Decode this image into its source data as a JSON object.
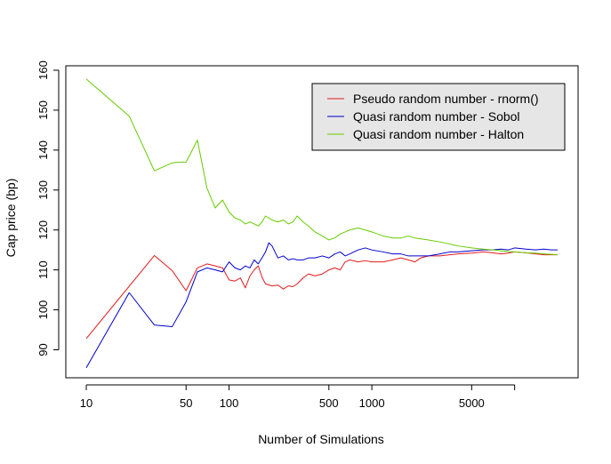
{
  "chart_data": {
    "type": "line",
    "title": "",
    "xlabel": "Number of Simulations",
    "ylabel": "Cap price (bp)",
    "x_scale": "log",
    "xlim": [
      10,
      20000
    ],
    "ylim": [
      85,
      160
    ],
    "x_ticks": [
      {
        "value": 10,
        "label": "10"
      },
      {
        "value": 50,
        "label": "50"
      },
      {
        "value": 100,
        "label": "100"
      },
      {
        "value": 500,
        "label": "500"
      },
      {
        "value": 1000,
        "label": "1000"
      },
      {
        "value": 5000,
        "label": "5000"
      },
      {
        "value": 10000,
        "label": ""
      }
    ],
    "y_ticks": [
      90,
      100,
      110,
      120,
      130,
      140,
      150,
      160
    ],
    "grid": false,
    "legend_position": "top-right",
    "series": [
      {
        "name": "Pseudo random number - rnorm()",
        "color": "#e31a1c",
        "points": [
          [
            10,
            92.8
          ],
          [
            30,
            113.6
          ],
          [
            40,
            109.8
          ],
          [
            50,
            104.8
          ],
          [
            60,
            110.5
          ],
          [
            70,
            111.5
          ],
          [
            80,
            111.0
          ],
          [
            90,
            110.5
          ],
          [
            100,
            107.5
          ],
          [
            110,
            107.2
          ],
          [
            120,
            108.0
          ],
          [
            130,
            105.5
          ],
          [
            140,
            108.5
          ],
          [
            150,
            110.0
          ],
          [
            160,
            111.0
          ],
          [
            170,
            108.2
          ],
          [
            180,
            106.5
          ],
          [
            200,
            106.0
          ],
          [
            220,
            106.2
          ],
          [
            240,
            105.2
          ],
          [
            260,
            106.0
          ],
          [
            280,
            105.8
          ],
          [
            300,
            106.5
          ],
          [
            330,
            108.0
          ],
          [
            360,
            109.0
          ],
          [
            400,
            108.5
          ],
          [
            450,
            109.0
          ],
          [
            500,
            110.0
          ],
          [
            550,
            110.5
          ],
          [
            600,
            110.0
          ],
          [
            650,
            112.0
          ],
          [
            700,
            112.5
          ],
          [
            800,
            112.0
          ],
          [
            900,
            112.3
          ],
          [
            1000,
            112.0
          ],
          [
            1200,
            112.0
          ],
          [
            1400,
            112.5
          ],
          [
            1600,
            113.0
          ],
          [
            1800,
            112.5
          ],
          [
            2000,
            112.0
          ],
          [
            2200,
            113.0
          ],
          [
            2500,
            113.5
          ],
          [
            3000,
            113.5
          ],
          [
            3500,
            113.8
          ],
          [
            4000,
            114.0
          ],
          [
            5000,
            114.2
          ],
          [
            6000,
            114.5
          ],
          [
            7000,
            114.3
          ],
          [
            8000,
            114.0
          ],
          [
            9000,
            114.2
          ],
          [
            10000,
            114.5
          ],
          [
            12000,
            114.3
          ],
          [
            14000,
            114.0
          ],
          [
            16000,
            113.8
          ],
          [
            18000,
            113.8
          ],
          [
            20000,
            113.8
          ]
        ]
      },
      {
        "name": "Quasi random number - Sobol",
        "color": "#0000cc",
        "points": [
          [
            10,
            85.5
          ],
          [
            20,
            104.3
          ],
          [
            30,
            96.2
          ],
          [
            40,
            95.8
          ],
          [
            50,
            102.0
          ],
          [
            60,
            109.5
          ],
          [
            70,
            110.5
          ],
          [
            80,
            110.0
          ],
          [
            90,
            109.5
          ],
          [
            100,
            112.0
          ],
          [
            110,
            110.5
          ],
          [
            120,
            110.0
          ],
          [
            130,
            111.0
          ],
          [
            140,
            110.5
          ],
          [
            150,
            112.5
          ],
          [
            160,
            111.5
          ],
          [
            170,
            113.0
          ],
          [
            180,
            114.5
          ],
          [
            190,
            116.8
          ],
          [
            200,
            116.0
          ],
          [
            220,
            113.0
          ],
          [
            240,
            113.5
          ],
          [
            260,
            112.5
          ],
          [
            280,
            112.8
          ],
          [
            300,
            112.5
          ],
          [
            330,
            112.5
          ],
          [
            360,
            113.0
          ],
          [
            400,
            113.0
          ],
          [
            450,
            113.5
          ],
          [
            500,
            113.0
          ],
          [
            550,
            114.0
          ],
          [
            600,
            114.5
          ],
          [
            650,
            113.5
          ],
          [
            700,
            114.0
          ],
          [
            800,
            115.0
          ],
          [
            900,
            115.5
          ],
          [
            1000,
            115.0
          ],
          [
            1200,
            114.5
          ],
          [
            1400,
            114.0
          ],
          [
            1600,
            114.0
          ],
          [
            1800,
            113.5
          ],
          [
            2000,
            113.5
          ],
          [
            2500,
            113.5
          ],
          [
            3000,
            114.0
          ],
          [
            3500,
            114.5
          ],
          [
            4000,
            114.5
          ],
          [
            5000,
            114.8
          ],
          [
            6000,
            115.0
          ],
          [
            7000,
            115.0
          ],
          [
            8000,
            115.2
          ],
          [
            9000,
            115.0
          ],
          [
            10000,
            115.5
          ],
          [
            12000,
            115.2
          ],
          [
            14000,
            115.0
          ],
          [
            16000,
            115.2
          ],
          [
            18000,
            115.0
          ],
          [
            20000,
            115.0
          ]
        ]
      },
      {
        "name": "Quasi random number - Halton",
        "color": "#66cc00",
        "points": [
          [
            10,
            157.8
          ],
          [
            20,
            148.5
          ],
          [
            30,
            134.8
          ],
          [
            40,
            136.8
          ],
          [
            45,
            137.0
          ],
          [
            50,
            137.0
          ],
          [
            60,
            142.5
          ],
          [
            70,
            130.5
          ],
          [
            80,
            125.5
          ],
          [
            90,
            127.5
          ],
          [
            100,
            124.5
          ],
          [
            110,
            123.0
          ],
          [
            120,
            122.5
          ],
          [
            130,
            121.5
          ],
          [
            140,
            122.0
          ],
          [
            150,
            121.5
          ],
          [
            160,
            121.0
          ],
          [
            170,
            122.0
          ],
          [
            180,
            123.5
          ],
          [
            200,
            122.5
          ],
          [
            220,
            122.0
          ],
          [
            240,
            122.5
          ],
          [
            260,
            121.5
          ],
          [
            280,
            122.0
          ],
          [
            300,
            123.5
          ],
          [
            330,
            122.0
          ],
          [
            360,
            121.0
          ],
          [
            400,
            119.5
          ],
          [
            450,
            118.5
          ],
          [
            500,
            117.5
          ],
          [
            550,
            118.0
          ],
          [
            600,
            119.0
          ],
          [
            650,
            119.5
          ],
          [
            700,
            120.0
          ],
          [
            800,
            120.5
          ],
          [
            900,
            120.0
          ],
          [
            1000,
            119.5
          ],
          [
            1200,
            118.5
          ],
          [
            1400,
            118.0
          ],
          [
            1600,
            118.0
          ],
          [
            1800,
            118.5
          ],
          [
            2000,
            118.0
          ],
          [
            2500,
            117.5
          ],
          [
            3000,
            117.0
          ],
          [
            3500,
            116.5
          ],
          [
            4000,
            116.0
          ],
          [
            5000,
            115.5
          ],
          [
            6000,
            115.2
          ],
          [
            7000,
            115.0
          ],
          [
            8000,
            114.8
          ],
          [
            9000,
            114.6
          ],
          [
            10000,
            114.5
          ],
          [
            12000,
            114.3
          ],
          [
            14000,
            114.2
          ],
          [
            16000,
            114.0
          ],
          [
            18000,
            113.9
          ],
          [
            20000,
            113.8
          ]
        ]
      }
    ]
  }
}
